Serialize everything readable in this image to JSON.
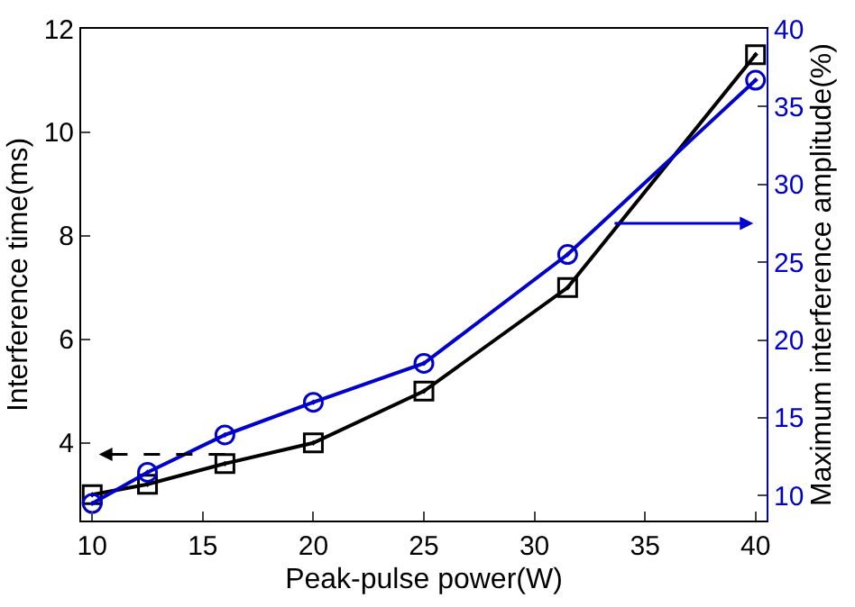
{
  "chart_data": {
    "type": "line",
    "xlabel": "Peak-pulse power(W)",
    "ylabel": "Interference time(ms)",
    "y2label": "Maximum interference amplitude(%)",
    "x": [
      10,
      12.5,
      16,
      20,
      25,
      31.5,
      40
    ],
    "series": [
      {
        "color": "#000000",
        "marker": "square",
        "values": [
          3.0,
          3.2,
          3.6,
          4.0,
          5.0,
          7.0,
          11.5
        ]
      },
      {
        "color": "#0000cc",
        "marker": "circle",
        "axis": "y2",
        "values": [
          9.5,
          11.5,
          13.9,
          16.0,
          18.5,
          25.5,
          36.7
        ]
      }
    ],
    "xlim": [
      9.5,
      40.5
    ],
    "xticks": [
      10,
      15,
      20,
      25,
      30,
      35,
      40
    ],
    "ylim": [
      2.5,
      12
    ],
    "yticks": [
      4,
      6,
      8,
      10,
      12
    ],
    "y2lim": [
      8.4,
      40
    ],
    "y2ticks": [
      10,
      15,
      20,
      25,
      30,
      35,
      40
    ]
  }
}
